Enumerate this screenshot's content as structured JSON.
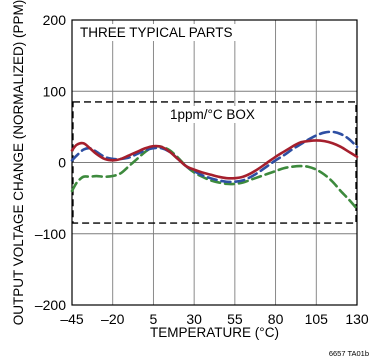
{
  "chart_data": {
    "type": "line",
    "title": "",
    "xlabel": "TEMPERATURE (°C)",
    "ylabel": "OUTPUT VOLTAGE CHANGE (NORMALIZED) (PPM)",
    "xlim": [
      -45,
      130
    ],
    "ylim": [
      -200,
      200
    ],
    "xticks": [
      -45,
      -20,
      5,
      30,
      55,
      80,
      105,
      130
    ],
    "xtick_labels": [
      "–45",
      "–20",
      "5",
      "30",
      "55",
      "80",
      "105",
      "130"
    ],
    "yticks": [
      -200,
      -100,
      0,
      100,
      200
    ],
    "ytick_labels": [
      "–200",
      "–100",
      "0",
      "100",
      "200"
    ],
    "grid": true,
    "annotations": [
      {
        "name": "parts-annotation",
        "text": "THREE TYPICAL PARTS"
      },
      {
        "name": "box-annotation",
        "text": "1ppm/°C BOX"
      }
    ],
    "box": {
      "x": [
        -45,
        130
      ],
      "y": [
        -85,
        85
      ],
      "style": "dashed"
    },
    "series": [
      {
        "color": "#a51f2d",
        "style": "solid",
        "x": [
          -45,
          -42,
          -38,
          -34,
          -30,
          -25,
          -20,
          -15,
          -10,
          -5,
          0,
          5,
          10,
          15,
          20,
          25,
          30,
          35,
          40,
          45,
          50,
          55,
          60,
          65,
          70,
          75,
          80,
          85,
          90,
          95,
          100,
          105,
          110,
          115,
          120,
          125,
          130
        ],
        "y": [
          17,
          25,
          27,
          20,
          12,
          5,
          3,
          5,
          10,
          15,
          20,
          23,
          22,
          15,
          5,
          -5,
          -10,
          -14,
          -17,
          -20,
          -22,
          -22,
          -20,
          -15,
          -8,
          0,
          8,
          15,
          22,
          28,
          30,
          31,
          30,
          27,
          22,
          15,
          8
        ]
      },
      {
        "color": "#2e4fa3",
        "style": "dashed",
        "x": [
          -45,
          -42,
          -38,
          -34,
          -30,
          -25,
          -20,
          -15,
          -10,
          -5,
          0,
          5,
          10,
          15,
          20,
          25,
          30,
          35,
          40,
          45,
          50,
          55,
          60,
          65,
          70,
          75,
          80,
          85,
          90,
          95,
          100,
          105,
          110,
          115,
          120,
          125,
          130
        ],
        "y": [
          3,
          10,
          18,
          20,
          15,
          8,
          5,
          5,
          7,
          12,
          17,
          20,
          20,
          15,
          5,
          -5,
          -12,
          -18,
          -22,
          -25,
          -27,
          -27,
          -25,
          -20,
          -13,
          -5,
          3,
          10,
          18,
          25,
          32,
          38,
          42,
          43,
          40,
          33,
          22
        ]
      },
      {
        "color": "#3d8a3d",
        "style": "dashed",
        "x": [
          -45,
          -42,
          -38,
          -34,
          -30,
          -25,
          -20,
          -15,
          -10,
          -5,
          0,
          5,
          10,
          15,
          20,
          25,
          30,
          35,
          40,
          45,
          50,
          55,
          60,
          65,
          70,
          75,
          80,
          85,
          90,
          95,
          100,
          105,
          110,
          115,
          120,
          125,
          130
        ],
        "y": [
          -40,
          -28,
          -20,
          -20,
          -19,
          -20,
          -19,
          -15,
          -5,
          5,
          15,
          22,
          22,
          17,
          7,
          -5,
          -14,
          -20,
          -25,
          -28,
          -30,
          -30,
          -28,
          -24,
          -20,
          -16,
          -12,
          -8,
          -6,
          -5,
          -6,
          -10,
          -17,
          -27,
          -40,
          -52,
          -65
        ]
      }
    ]
  },
  "part_number": "6657 TA01b"
}
